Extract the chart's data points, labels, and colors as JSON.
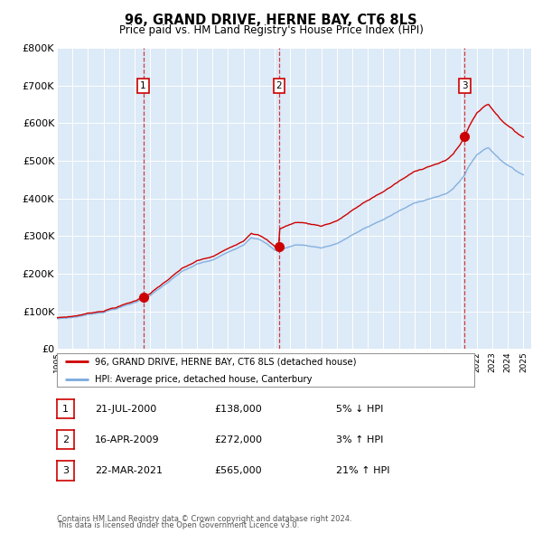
{
  "title": "96, GRAND DRIVE, HERNE BAY, CT6 8LS",
  "subtitle": "Price paid vs. HM Land Registry's House Price Index (HPI)",
  "legend_line1": "96, GRAND DRIVE, HERNE BAY, CT6 8LS (detached house)",
  "legend_line2": "HPI: Average price, detached house, Canterbury",
  "footer1": "Contains HM Land Registry data © Crown copyright and database right 2024.",
  "footer2": "This data is licensed under the Open Government Licence v3.0.",
  "sale_color": "#cc0000",
  "hpi_color": "#7aaadd",
  "background_color": "#ddeaf7",
  "fig_bg_color": "#ffffff",
  "ylim": [
    0,
    800000
  ],
  "yticks": [
    0,
    100000,
    200000,
    300000,
    400000,
    500000,
    600000,
    700000,
    800000
  ],
  "ytick_labels": [
    "£0",
    "£100K",
    "£200K",
    "£300K",
    "£400K",
    "£500K",
    "£600K",
    "£700K",
    "£800K"
  ],
  "xlim": [
    1995,
    2025.5
  ],
  "sales": [
    {
      "year": 2000.55,
      "price": 138000,
      "label": "1"
    },
    {
      "year": 2009.29,
      "price": 272000,
      "label": "2"
    },
    {
      "year": 2021.22,
      "price": 565000,
      "label": "3"
    }
  ],
  "sale_vlines": [
    2000.55,
    2009.29,
    2021.22
  ],
  "table_rows": [
    {
      "num": "1",
      "date": "21-JUL-2000",
      "price": "£138,000",
      "hpi": "5% ↓ HPI"
    },
    {
      "num": "2",
      "date": "16-APR-2009",
      "price": "£272,000",
      "hpi": "3% ↑ HPI"
    },
    {
      "num": "3",
      "date": "22-MAR-2021",
      "price": "£565,000",
      "hpi": "21% ↑ HPI"
    }
  ]
}
